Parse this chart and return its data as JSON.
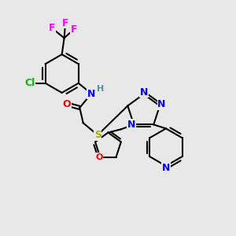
{
  "background_color": "#e8e8e8",
  "atom_colors": {
    "C": "#000000",
    "H": "#4a9999",
    "N": "#0000ff",
    "O": "#ff0000",
    "S": "#aaaa00",
    "F": "#ff00ff",
    "Cl": "#00bb00"
  },
  "bond_color": "#000000",
  "bond_width": 1.5,
  "font_size": 9
}
